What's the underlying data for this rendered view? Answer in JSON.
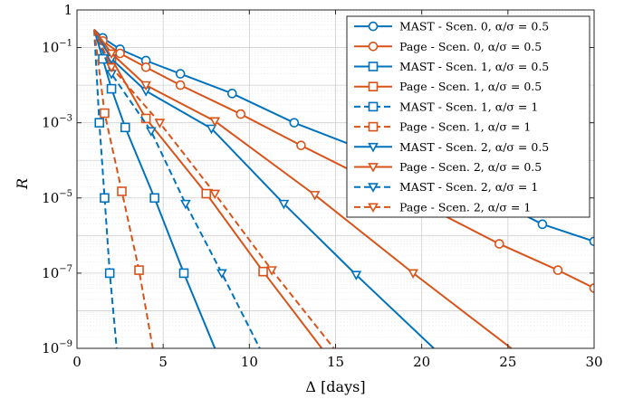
{
  "chart_data": {
    "type": "line",
    "xlabel": "Δ [days]",
    "ylabel": "R",
    "xlim": [
      0,
      30
    ],
    "ylim": [
      1e-09,
      1
    ],
    "yscale": "log",
    "grid": true,
    "legend_position": "top-right",
    "xticks": [
      0,
      5,
      10,
      15,
      20,
      25,
      30
    ],
    "yticks": [
      {
        "value": 1,
        "label": "1"
      },
      {
        "value": 0.1,
        "label": "10^-1"
      },
      {
        "value": 0.001,
        "label": "10^-3"
      },
      {
        "value": 1e-05,
        "label": "10^-5"
      },
      {
        "value": 1e-07,
        "label": "10^-7"
      },
      {
        "value": 1e-09,
        "label": "10^-9"
      }
    ],
    "series": [
      {
        "name": "MAST - Scen. 0, α/σ = 0.5",
        "color": "#0072BD",
        "dash": "solid",
        "marker": "circle",
        "x": [
          1,
          1.5,
          2.5,
          4,
          6,
          9,
          12.6,
          16,
          20,
          24,
          27,
          30
        ],
        "y": [
          0.3,
          0.18,
          0.09,
          0.045,
          0.02,
          0.006,
          0.001,
          0.00025,
          5e-05,
          1e-05,
          2e-06,
          7e-07
        ]
      },
      {
        "name": "Page - Scen. 0, α/σ = 0.5",
        "color": "#D95319",
        "dash": "solid",
        "marker": "circle",
        "x": [
          1,
          1.5,
          2.5,
          4,
          6,
          9.5,
          13,
          17,
          21,
          24.5,
          27.9,
          30
        ],
        "y": [
          0.3,
          0.15,
          0.07,
          0.03,
          0.01,
          0.0017,
          0.00025,
          3e-05,
          4e-06,
          6e-07,
          1.2e-07,
          4e-08
        ]
      },
      {
        "name": "MAST - Scen. 1, α/σ = 0.5",
        "color": "#0072BD",
        "dash": "solid",
        "marker": "square",
        "x": [
          1,
          1.5,
          2,
          2.8,
          4.5,
          6.2,
          8
        ],
        "y": [
          0.3,
          0.05,
          0.008,
          0.00075,
          1e-05,
          1e-07,
          1e-09
        ]
      },
      {
        "name": "Page - Scen. 1, α/σ = 0.5",
        "color": "#D95319",
        "dash": "solid",
        "marker": "square",
        "x": [
          1,
          2,
          4,
          7.5,
          10.8,
          14.2
        ],
        "y": [
          0.3,
          0.05,
          0.0013,
          1.3e-05,
          1.1e-07,
          1e-09
        ]
      },
      {
        "name": "MAST - Scen. 1, α/σ = 1",
        "color": "#0072BD",
        "dash": "dashed",
        "marker": "square",
        "x": [
          1,
          1.3,
          1.6,
          1.9,
          2.3
        ],
        "y": [
          0.3,
          0.001,
          1e-05,
          1e-07,
          1e-09
        ]
      },
      {
        "name": "Page - Scen. 1, α/σ = 1",
        "color": "#D95319",
        "dash": "dashed",
        "marker": "square",
        "x": [
          1,
          1.6,
          2.6,
          3.6,
          4.4
        ],
        "y": [
          0.3,
          0.0018,
          1.5e-05,
          1.2e-07,
          1e-09
        ]
      },
      {
        "name": "MAST - Scen. 2, α/σ = 0.5",
        "color": "#0072BD",
        "dash": "solid",
        "marker": "triangle",
        "x": [
          1,
          2,
          4,
          7.8,
          12,
          16.2,
          20.7
        ],
        "y": [
          0.3,
          0.05,
          0.007,
          0.0007,
          7e-06,
          9e-08,
          1e-09
        ]
      },
      {
        "name": "Page - Scen. 2, α/σ = 0.5",
        "color": "#D95319",
        "dash": "solid",
        "marker": "triangle",
        "x": [
          1,
          2,
          4,
          8,
          13.8,
          19.5,
          25.2
        ],
        "y": [
          0.3,
          0.07,
          0.01,
          0.0011,
          1.2e-05,
          1e-07,
          1e-09
        ]
      },
      {
        "name": "MAST - Scen. 2, α/σ = 1",
        "color": "#0072BD",
        "dash": "dashed",
        "marker": "triangle",
        "x": [
          1,
          2,
          4.3,
          6.3,
          8.4,
          10.6
        ],
        "y": [
          0.3,
          0.02,
          0.0006,
          7e-06,
          1e-07,
          1e-09
        ]
      },
      {
        "name": "Page - Scen. 2, α/σ = 1",
        "color": "#D95319",
        "dash": "dashed",
        "marker": "triangle",
        "x": [
          1,
          2,
          4.8,
          8,
          11.3,
          14.9
        ],
        "y": [
          0.3,
          0.03,
          0.001,
          1.3e-05,
          1.2e-07,
          1e-09
        ]
      }
    ]
  }
}
